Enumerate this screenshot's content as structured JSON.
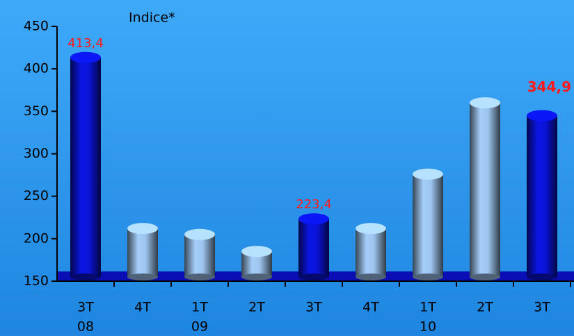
{
  "chart_data": {
    "type": "bar",
    "title": "Indice*",
    "categories": [
      "3T",
      "4T",
      "1T",
      "2T",
      "3T",
      "4T",
      "1T",
      "2T",
      "3T"
    ],
    "category_groups": [
      "08",
      "09",
      "10"
    ],
    "values": [
      413.4,
      212,
      205,
      185,
      223.4,
      212,
      276,
      360,
      344.9
    ],
    "value_labels": [
      "413,4",
      null,
      null,
      null,
      "223,4",
      null,
      null,
      null,
      "344,9"
    ],
    "colors": [
      "#0a14d8",
      "#9ec4ee",
      "#9ec4ee",
      "#9ec4ee",
      "#0a14d8",
      "#9ec4ee",
      "#9ec4ee",
      "#9ec4ee",
      "#0a14d8"
    ],
    "ylim": [
      150,
      450
    ],
    "yticks": [
      150,
      200,
      250,
      300,
      350,
      400,
      450
    ]
  }
}
